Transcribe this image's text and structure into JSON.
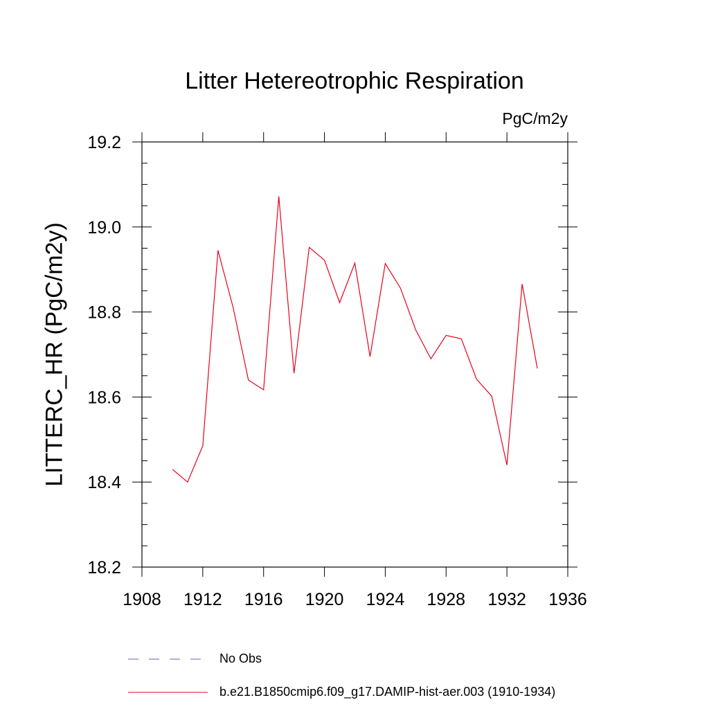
{
  "chart_data": {
    "type": "line",
    "title": "Litter Hetereotrophic Respiration",
    "units": "PgC/m2y",
    "ylabel": "LITTERC_HR  (PgC/m2y)",
    "xlim": [
      1908,
      1936
    ],
    "ylim": [
      18.2,
      19.2
    ],
    "xticks": [
      1908,
      1912,
      1916,
      1920,
      1924,
      1928,
      1932,
      1936
    ],
    "yticks": [
      18.2,
      18.4,
      18.6,
      18.8,
      19.0,
      19.2
    ],
    "ytick_labels": [
      "18.2",
      "18.4",
      "18.6",
      "18.8",
      "19.0",
      "19.2"
    ],
    "series": [
      {
        "name": "b.e21.B1850cmip6.f09_g17.DAMIP-hist-aer.003 (1910-1934)",
        "color": "#e8001c",
        "x": [
          1910,
          1911,
          1912,
          1913,
          1914,
          1915,
          1916,
          1917,
          1918,
          1919,
          1920,
          1921,
          1922,
          1923,
          1924,
          1925,
          1926,
          1927,
          1928,
          1929,
          1930,
          1931,
          1932,
          1933,
          1934
        ],
        "y": [
          18.43,
          18.4,
          18.485,
          18.945,
          18.81,
          18.64,
          18.617,
          19.072,
          18.656,
          18.952,
          18.922,
          18.822,
          18.915,
          18.695,
          18.914,
          18.856,
          18.758,
          18.69,
          18.745,
          18.737,
          18.642,
          18.602,
          18.44,
          18.866,
          18.667
        ]
      }
    ],
    "legend": [
      {
        "label": "No Obs",
        "color": "#6a5acd",
        "style": "dashed"
      },
      {
        "label": "b.e21.B1850cmip6.f09_g17.DAMIP-hist-aer.003 (1910-1934)",
        "color": "#e8001c",
        "style": "solid"
      }
    ],
    "grid": false,
    "legend_position": "bottom"
  }
}
